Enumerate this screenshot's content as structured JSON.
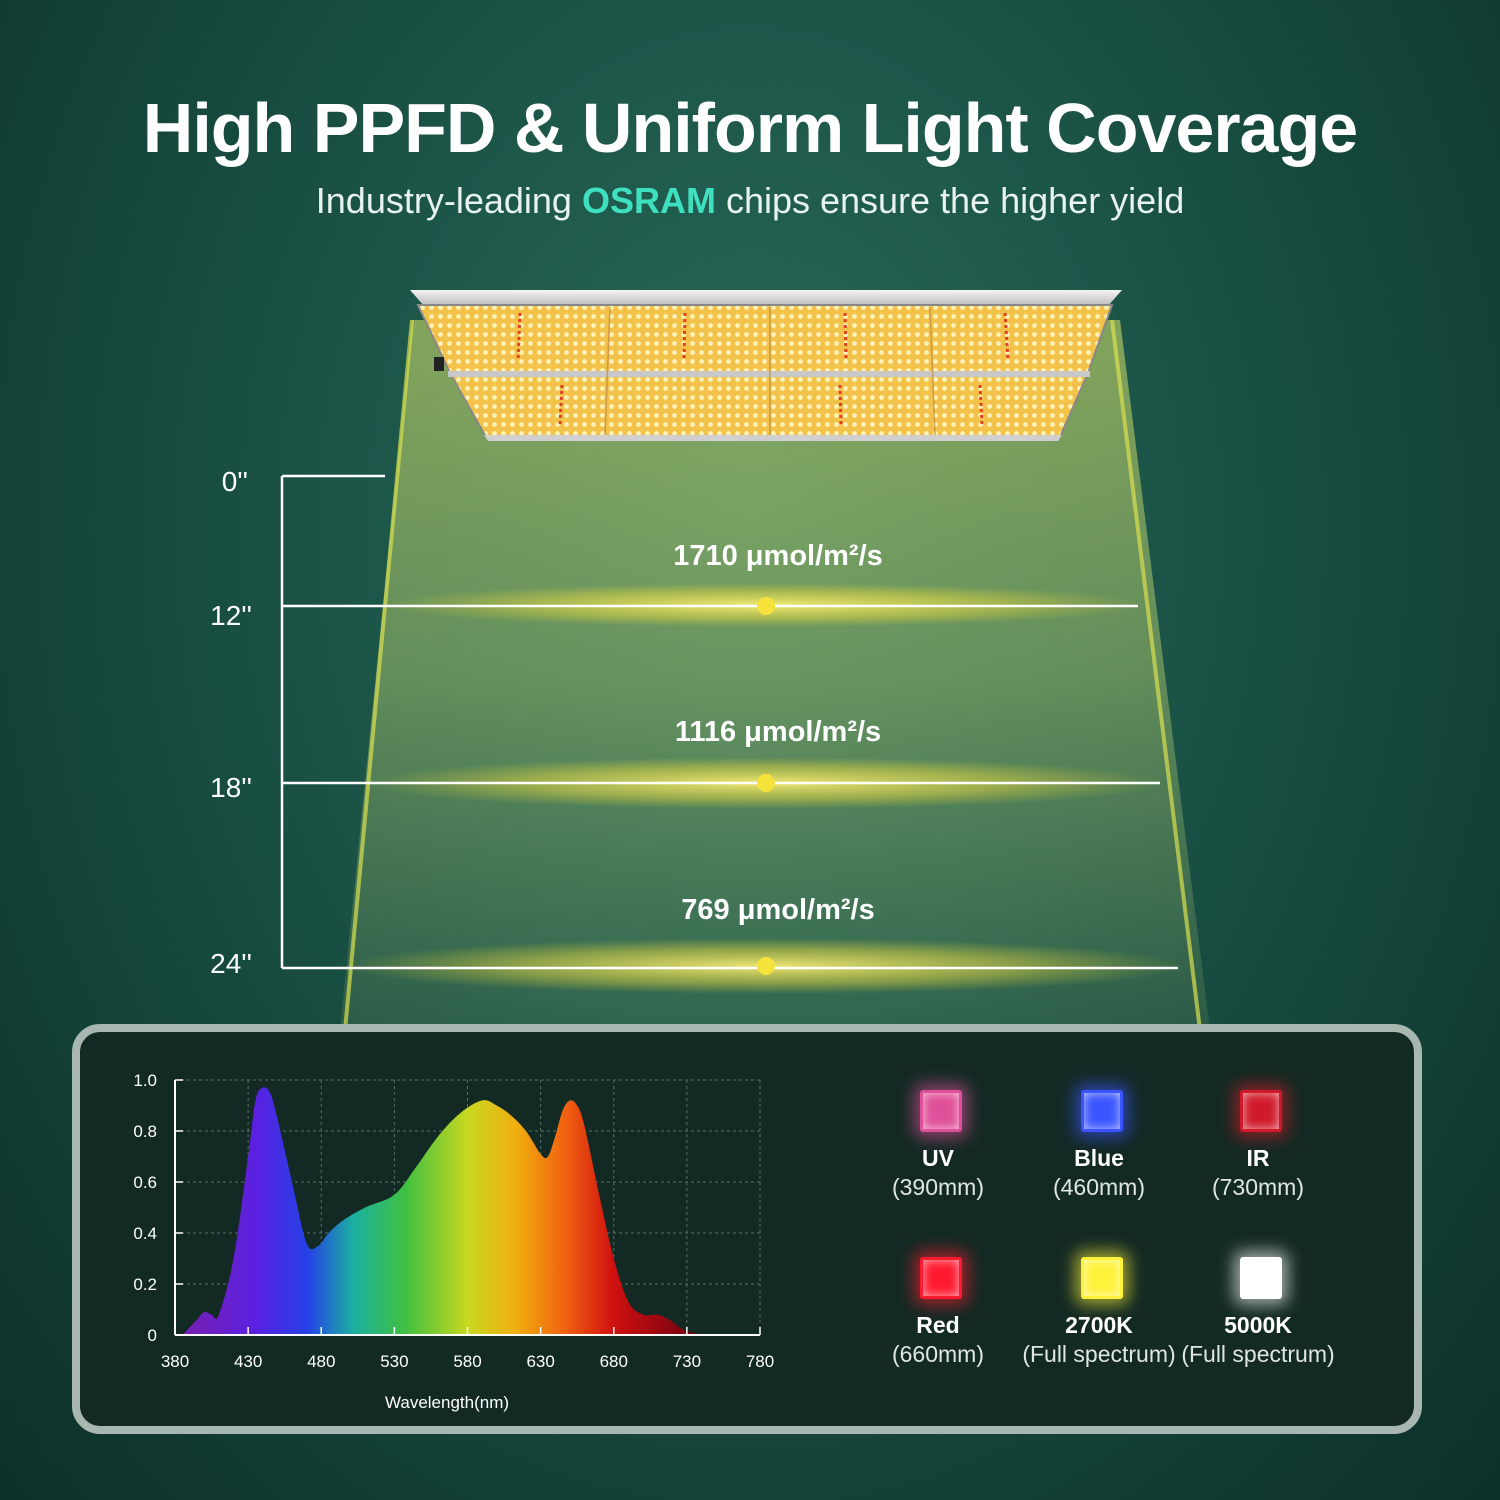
{
  "header": {
    "title": "High PPFD & Uniform Light Coverage",
    "subtitle_pre": "Industry-leading ",
    "subtitle_brand": "OSRAM",
    "subtitle_post": " chips ensure the higher yield"
  },
  "heights": {
    "h0": "0''",
    "h12": "12''",
    "h18": "18''",
    "h24": "24''"
  },
  "ppfd": {
    "at12": "1710 μmol/m²/s",
    "at18": "1116 μmol/m²/s",
    "at24": "769 μmol/m²/s"
  },
  "chart_data": {
    "type": "area",
    "xlabel": "Wavelength(nm)",
    "ylabel": "",
    "title": "",
    "xlim": [
      380,
      780
    ],
    "ylim": [
      0,
      1.0
    ],
    "x_ticks": [
      "380",
      "430",
      "480",
      "530",
      "580",
      "630",
      "680",
      "730",
      "780"
    ],
    "y_ticks": [
      "0",
      "0.2",
      "0.4",
      "0.6",
      "0.8",
      "1.0"
    ],
    "grid": true,
    "x": [
      385,
      395,
      400,
      405,
      410,
      420,
      430,
      435,
      440,
      445,
      450,
      460,
      470,
      478,
      485,
      495,
      510,
      530,
      545,
      560,
      575,
      590,
      600,
      610,
      620,
      630,
      635,
      640,
      645,
      650,
      655,
      660,
      670,
      680,
      690,
      700,
      710,
      718,
      728,
      740
    ],
    "values": [
      0.0,
      0.06,
      0.09,
      0.08,
      0.08,
      0.3,
      0.7,
      0.92,
      0.97,
      0.95,
      0.85,
      0.6,
      0.36,
      0.35,
      0.4,
      0.45,
      0.5,
      0.55,
      0.66,
      0.78,
      0.87,
      0.92,
      0.9,
      0.86,
      0.8,
      0.71,
      0.7,
      0.78,
      0.88,
      0.92,
      0.9,
      0.82,
      0.55,
      0.3,
      0.13,
      0.08,
      0.08,
      0.06,
      0.02,
      0.0
    ]
  },
  "chips": [
    {
      "name": "UV",
      "sub": "(390mm)",
      "color": "#e0509a"
    },
    {
      "name": "Blue",
      "sub": "(460mm)",
      "color": "#3a55ff"
    },
    {
      "name": "IR",
      "sub": "(730mm)",
      "color": "#d01a2a"
    },
    {
      "name": "Red",
      "sub": "(660mm)",
      "color": "#ff1a30"
    },
    {
      "name": "2700K",
      "sub": "(Full spectrum)",
      "color": "#fff23a"
    },
    {
      "name": "5000K",
      "sub": "(Full spectrum)",
      "color": "#ffffff"
    }
  ]
}
